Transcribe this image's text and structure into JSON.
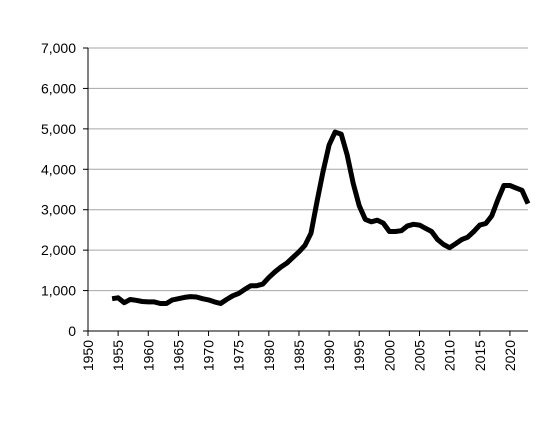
{
  "chart_data": {
    "type": "line",
    "title": "",
    "xlabel": "",
    "ylabel": "",
    "xlim": [
      1950,
      2023
    ],
    "ylim": [
      0,
      7000
    ],
    "y_ticks": [
      {
        "value": 0,
        "label": "0"
      },
      {
        "value": 1000,
        "label": "1,000"
      },
      {
        "value": 2000,
        "label": "2,000"
      },
      {
        "value": 3000,
        "label": "3,000"
      },
      {
        "value": 4000,
        "label": "4,000"
      },
      {
        "value": 5000,
        "label": "5,000"
      },
      {
        "value": 6000,
        "label": "6,000"
      },
      {
        "value": 7000,
        "label": "7,000"
      }
    ],
    "x_ticks": [
      {
        "value": 1950,
        "label": "1950"
      },
      {
        "value": 1955,
        "label": "1955"
      },
      {
        "value": 1960,
        "label": "1960"
      },
      {
        "value": 1965,
        "label": "1965"
      },
      {
        "value": 1970,
        "label": "1970"
      },
      {
        "value": 1975,
        "label": "1975"
      },
      {
        "value": 1980,
        "label": "1980"
      },
      {
        "value": 1985,
        "label": "1985"
      },
      {
        "value": 1990,
        "label": "1990"
      },
      {
        "value": 1995,
        "label": "1995"
      },
      {
        "value": 2000,
        "label": "2000"
      },
      {
        "value": 2005,
        "label": "2005"
      },
      {
        "value": 2010,
        "label": "2010"
      },
      {
        "value": 2015,
        "label": "2015"
      },
      {
        "value": 2020,
        "label": "2020"
      }
    ],
    "grid": "horizontal",
    "legend": "none",
    "line_color": "#000000",
    "gridline_color": "#a6a6a6",
    "series": [
      {
        "x": [
          1954,
          1955,
          1956,
          1957,
          1958,
          1959,
          1960,
          1961,
          1962,
          1963,
          1964,
          1965,
          1966,
          1967,
          1968,
          1969,
          1970,
          1971,
          1972,
          1973,
          1974,
          1975,
          1976,
          1977,
          1978,
          1979,
          1980,
          1981,
          1982,
          1983,
          1984,
          1985,
          1986,
          1987,
          1988,
          1989,
          1990,
          1991,
          1992,
          1993,
          1994,
          1995,
          1996,
          1997,
          1998,
          1999,
          2000,
          2001,
          2002,
          2003,
          2004,
          2005,
          2006,
          2007,
          2008,
          2009,
          2010,
          2011,
          2012,
          2013,
          2014,
          2015,
          2016,
          2017,
          2018,
          2019,
          2020,
          2021,
          2022,
          2023
        ],
        "values": [
          800,
          820,
          700,
          780,
          760,
          730,
          720,
          720,
          680,
          680,
          770,
          800,
          830,
          850,
          840,
          800,
          770,
          720,
          680,
          780,
          870,
          930,
          1030,
          1120,
          1120,
          1160,
          1320,
          1460,
          1580,
          1680,
          1820,
          1960,
          2120,
          2420,
          3200,
          3950,
          4600,
          4920,
          4870,
          4350,
          3650,
          3100,
          2760,
          2700,
          2740,
          2670,
          2460,
          2460,
          2480,
          2600,
          2640,
          2620,
          2540,
          2460,
          2260,
          2140,
          2060,
          2160,
          2260,
          2320,
          2460,
          2620,
          2660,
          2850,
          3250,
          3600,
          3600,
          3540,
          3480,
          3150
        ]
      }
    ]
  }
}
